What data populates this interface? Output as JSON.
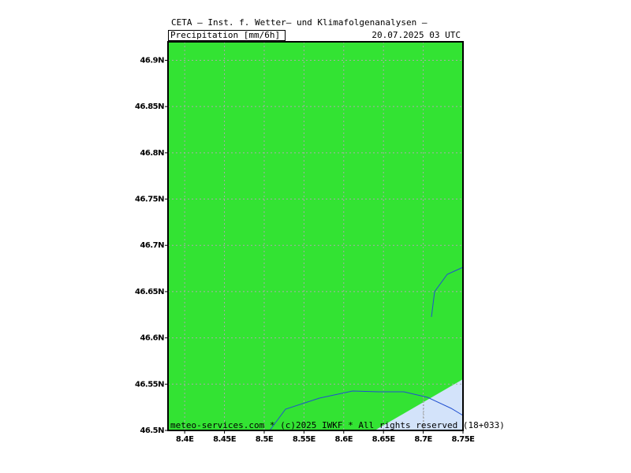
{
  "header": {
    "title": "CETA – Inst. f. Wetter– und Klimafolgenanalysen –",
    "variable": "Precipitation [mm/6h]",
    "date": "20.07.2025  03 UTC"
  },
  "map": {
    "xlim": [
      8.379,
      8.75
    ],
    "ylim": [
      46.5,
      46.92
    ],
    "xticks": [
      {
        "value": 8.4,
        "label": "8.4E"
      },
      {
        "value": 8.45,
        "label": "8.45E"
      },
      {
        "value": 8.5,
        "label": "8.5E"
      },
      {
        "value": 8.55,
        "label": "8.55E"
      },
      {
        "value": 8.6,
        "label": "8.6E"
      },
      {
        "value": 8.65,
        "label": "8.65E"
      },
      {
        "value": 8.7,
        "label": "8.7E"
      },
      {
        "value": 8.75,
        "label": "8.75E"
      }
    ],
    "yticks": [
      {
        "value": 46.5,
        "label": "46.5N"
      },
      {
        "value": 46.55,
        "label": "46.55N"
      },
      {
        "value": 46.6,
        "label": "46.6N"
      },
      {
        "value": 46.65,
        "label": "46.65N"
      },
      {
        "value": 46.7,
        "label": "46.7N"
      },
      {
        "value": 46.75,
        "label": "46.75N"
      },
      {
        "value": 46.8,
        "label": "46.8N"
      },
      {
        "value": 46.85,
        "label": "46.85N"
      },
      {
        "value": 46.9,
        "label": "46.9N"
      }
    ],
    "grid": true
  },
  "footer": "meteo-services.com * (c)2025 IWKF * All rights reserved (18+033)"
}
